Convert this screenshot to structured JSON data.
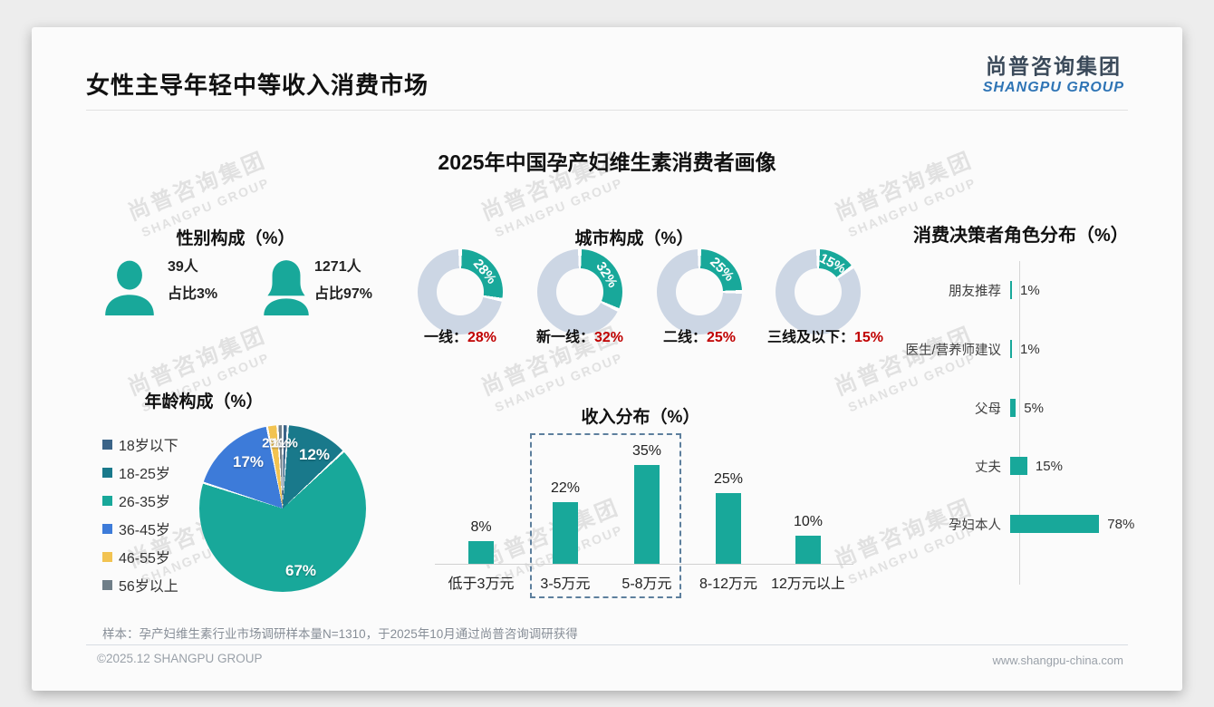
{
  "page": {
    "slide_title": "女性主导年轻中等收入消费市场",
    "main_title": "2025年中国孕产妇维生素消费者画像",
    "footer_note": "样本：孕产妇维生素行业市场调研样本量N=1310，于2025年10月通过尚普咨询调研获得",
    "copyright": "©2025.12 SHANGPU GROUP",
    "website": "www.shangpu-china.com"
  },
  "logo": {
    "cn": "尚普咨询集团",
    "en": "SHANGPU GROUP"
  },
  "watermark": {
    "line1": "尚普咨询集团",
    "line2": "SHANGPU GROUP"
  },
  "colors": {
    "teal": "#18a89a",
    "donut_base": "#ccd6e4",
    "red": "#c00000",
    "dash": "#5d7f9d",
    "logo_blue": "#2e74b5",
    "logo_dark": "#3b4a5a",
    "axis_gray": "#d5d5d5"
  },
  "chart_data": [
    {
      "id": "gender",
      "type": "pictogram",
      "title": "性别构成（%）",
      "items": [
        {
          "icon": "male-icon",
          "count": "39人",
          "share": "占比3%",
          "value": 3
        },
        {
          "icon": "female-icon",
          "count": "1271人",
          "share": "占比97%",
          "value": 97
        }
      ]
    },
    {
      "id": "city",
      "type": "donut",
      "title": "城市构成（%）",
      "categories": [
        "一线",
        "新一线",
        "二线",
        "三线及以下"
      ],
      "values": [
        28,
        32,
        25,
        15
      ],
      "labels": [
        {
          "name": "一线：",
          "pct": "28%"
        },
        {
          "name": "新一线：",
          "pct": "32%"
        },
        {
          "name": "二线：",
          "pct": "25%"
        },
        {
          "name": "三线及以下：",
          "pct": "15%"
        }
      ]
    },
    {
      "id": "decision",
      "type": "bar-horizontal",
      "title": "消费决策者角色分布（%）",
      "categories": [
        "朋友推荐",
        "医生/营养师建议",
        "父母",
        "丈夫",
        "孕妇本人"
      ],
      "values": [
        1,
        1,
        5,
        15,
        78
      ],
      "value_labels": [
        "1%",
        "1%",
        "5%",
        "15%",
        "78%"
      ],
      "xlim": [
        0,
        100
      ],
      "legend_position": "none"
    },
    {
      "id": "age",
      "type": "pie",
      "title": "年龄构成（%）",
      "categories": [
        "18岁以下",
        "18-25岁",
        "26-35岁",
        "36-45岁",
        "46-55岁",
        "56岁以上"
      ],
      "values": [
        1,
        12,
        67,
        17,
        2,
        1
      ],
      "colors": [
        "#3b6488",
        "#19798b",
        "#18a89a",
        "#3d7bd9",
        "#f2c351",
        "#6f7e88"
      ],
      "pie_labels": [
        "1%",
        "12%",
        "67%",
        "17%",
        "2%",
        "1%"
      ],
      "legend_position": "left"
    },
    {
      "id": "income",
      "type": "bar",
      "title": "收入分布（%）",
      "categories": [
        "低于3万元",
        "3-5万元",
        "5-8万元",
        "8-12万元",
        "12万元以上"
      ],
      "values": [
        8,
        22,
        35,
        25,
        10
      ],
      "value_labels": [
        "8%",
        "22%",
        "35%",
        "25%",
        "10%"
      ],
      "ylim": [
        0,
        40
      ],
      "highlight_box": {
        "categories": [
          "3-5万元",
          "5-8万元"
        ],
        "style": "dashed"
      }
    }
  ]
}
